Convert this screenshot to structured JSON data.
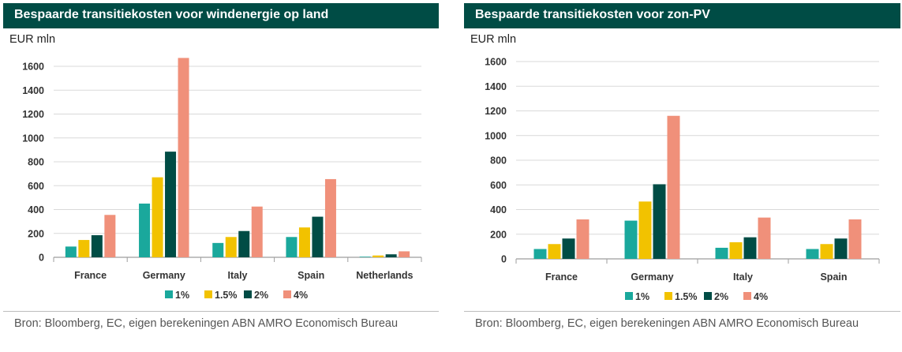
{
  "colors": {
    "title_bg": "#004c45",
    "series": [
      "#1aa89c",
      "#f2c200",
      "#004c45",
      "#f0907a"
    ]
  },
  "chart_data": [
    {
      "type": "bar",
      "title": "Bespaarde transitiekosten voor windenergie op land",
      "ylabel": "EUR mln",
      "ylim": [
        0,
        1600
      ],
      "yticks": [
        "1600",
        "1400",
        "1200",
        "1000",
        "800",
        "600",
        "400",
        "200",
        "0"
      ],
      "grid": true,
      "legend_position": "bottom",
      "categories": [
        "France",
        "Germany",
        "Italy",
        "Spain",
        "Netherlands"
      ],
      "series": [
        {
          "name": "1%",
          "values": [
            90,
            450,
            120,
            170,
            5
          ]
        },
        {
          "name": "1.5%",
          "values": [
            145,
            670,
            170,
            250,
            15
          ]
        },
        {
          "name": "2%",
          "values": [
            185,
            885,
            220,
            340,
            25
          ]
        },
        {
          "name": "4%",
          "values": [
            355,
            1670,
            425,
            655,
            50
          ]
        }
      ],
      "source": "Bron: Bloomberg, EC, eigen berekeningen ABN AMRO Economisch Bureau"
    },
    {
      "type": "bar",
      "title": "Bespaarde transitiekosten voor zon-PV",
      "ylabel": "EUR mln",
      "ylim": [
        0,
        1600
      ],
      "yticks": [
        "1600",
        "1400",
        "1200",
        "1000",
        "800",
        "600",
        "400",
        "200",
        "0"
      ],
      "grid": true,
      "legend_position": "bottom",
      "categories": [
        "France",
        "Germany",
        "Italy",
        "Spain"
      ],
      "series": [
        {
          "name": "1%",
          "values": [
            80,
            310,
            90,
            80
          ]
        },
        {
          "name": "1.5%",
          "values": [
            120,
            465,
            135,
            120
          ]
        },
        {
          "name": "2%",
          "values": [
            165,
            605,
            175,
            165
          ]
        },
        {
          "name": "4%",
          "values": [
            320,
            1160,
            335,
            320
          ]
        }
      ],
      "source": "Bron: Bloomberg, EC, eigen berekeningen ABN AMRO Economisch Bureau"
    }
  ]
}
